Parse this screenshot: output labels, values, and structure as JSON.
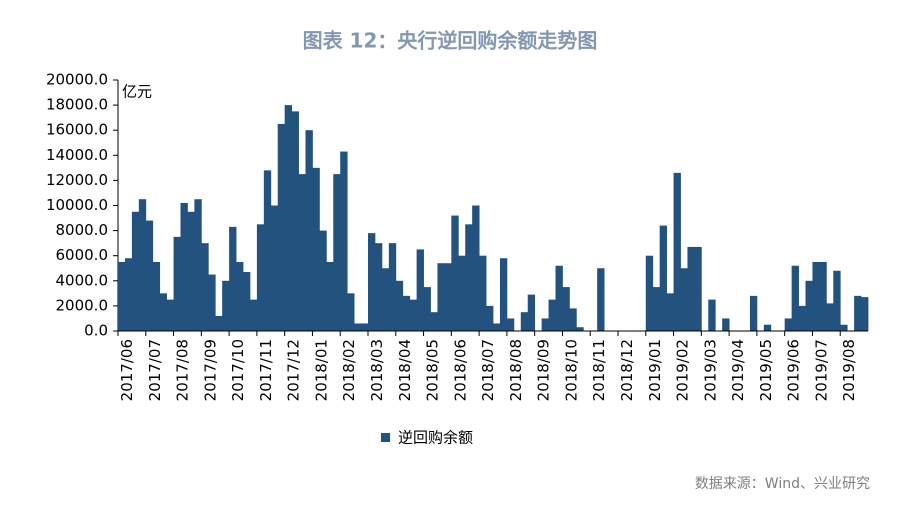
{
  "chart_data": {
    "type": "bar",
    "title": "图表 12：央行逆回购余额走势图",
    "unit": "亿元",
    "source": "数据来源：Wind、兴业研究",
    "color": "#24527f",
    "series": [
      {
        "name": "逆回购余额",
        "color": "#24527f",
        "values": [
          5500,
          5800,
          9500,
          10500,
          8800,
          5500,
          3000,
          2500,
          7500,
          10200,
          9500,
          10500,
          7000,
          4500,
          1200,
          4000,
          8300,
          5500,
          4700,
          2500,
          8500,
          12800,
          10000,
          16500,
          18000,
          17500,
          12500,
          16000,
          13000,
          8000,
          5500,
          12500,
          14300,
          3000,
          600,
          600,
          7800,
          7000,
          5000,
          7000,
          4000,
          2800,
          2500,
          6500,
          3500,
          1500,
          5400,
          5400,
          9200,
          6000,
          8500,
          10000,
          6000,
          2000,
          600,
          5800,
          1000,
          0,
          1500,
          2900,
          0,
          1000,
          2500,
          5200,
          3500,
          1800,
          300,
          0,
          0,
          5000,
          0,
          0,
          0,
          0,
          0,
          0,
          6000,
          3500,
          8400,
          3000,
          12600,
          5000,
          6700,
          6700,
          0,
          2500,
          0,
          1000,
          0,
          0,
          0,
          2800,
          0,
          500,
          0,
          0,
          1000,
          5200,
          2000,
          4000,
          5500,
          5500,
          2200,
          4800,
          500,
          0,
          2800,
          2700
        ]
      }
    ],
    "categories": [
      "2017/06",
      null,
      null,
      null,
      "2017/07",
      null,
      null,
      null,
      "2017/08",
      null,
      null,
      null,
      "2017/09",
      null,
      null,
      null,
      "2017/10",
      null,
      null,
      null,
      "2017/11",
      null,
      null,
      null,
      "2017/12",
      null,
      null,
      null,
      "2018/01",
      null,
      null,
      null,
      "2018/02",
      null,
      null,
      null,
      "2018/03",
      null,
      null,
      null,
      "2018/04",
      null,
      null,
      null,
      "2018/05",
      null,
      null,
      null,
      "2018/06",
      null,
      null,
      null,
      "2018/07",
      null,
      null,
      null,
      "2018/08",
      null,
      null,
      null,
      "2018/09",
      null,
      null,
      null,
      "2018/10",
      null,
      null,
      null,
      "2018/11",
      null,
      null,
      null,
      "2018/12",
      null,
      null,
      null,
      "2019/01",
      null,
      null,
      null,
      "2019/02",
      null,
      null,
      null,
      "2019/03",
      null,
      null,
      null,
      "2019/04",
      null,
      null,
      null,
      "2019/05",
      null,
      null,
      null,
      "2019/06",
      null,
      null,
      null,
      "2019/07",
      null,
      null,
      null,
      "2019/08",
      null,
      null,
      null
    ],
    "ylim": [
      0,
      20000
    ],
    "yticks": [
      {
        "value": 0,
        "label": "0.0"
      },
      {
        "value": 2000,
        "label": "2000.0"
      },
      {
        "value": 4000,
        "label": "4000.0"
      },
      {
        "value": 6000,
        "label": "6000.0"
      },
      {
        "value": 8000,
        "label": "8000.0"
      },
      {
        "value": 10000,
        "label": "10000.0"
      },
      {
        "value": 12000,
        "label": "12000.0"
      },
      {
        "value": 14000,
        "label": "14000.0"
      },
      {
        "value": 16000,
        "label": "16000.0"
      },
      {
        "value": 18000,
        "label": "18000.0"
      },
      {
        "value": 20000,
        "label": "20000.0"
      }
    ]
  }
}
